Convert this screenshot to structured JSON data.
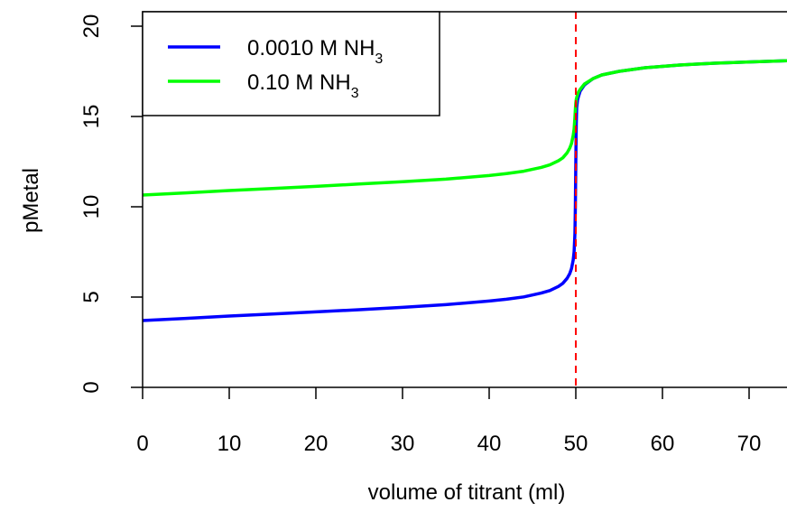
{
  "chart_data": {
    "type": "line",
    "xlabel": "volume of titrant (ml)",
    "ylabel": "pMetal",
    "xlim": [
      0,
      75
    ],
    "ylim": [
      0,
      20
    ],
    "x_ticks": [
      "0",
      "10",
      "20",
      "30",
      "40",
      "50",
      "60",
      "70"
    ],
    "y_ticks": [
      "0",
      "5",
      "10",
      "15",
      "20"
    ],
    "equivalence_point": 50,
    "equivalence_color": "#ff0000",
    "legend_position": "top-left",
    "series": [
      {
        "name": "0.0010 M NH3",
        "legend_main": "0.0010 M NH",
        "legend_sub": "3",
        "color": "#0000ff",
        "x": [
          0,
          5,
          10,
          15,
          20,
          25,
          30,
          35,
          40,
          42,
          44,
          46,
          47,
          48,
          48.5,
          49,
          49.3,
          49.5,
          49.7,
          49.8,
          49.9,
          49.95,
          50,
          50.05,
          50.1,
          50.2,
          50.3,
          50.5,
          51,
          52,
          53,
          55,
          58,
          62,
          66,
          70,
          75
        ],
        "y": [
          3.7,
          3.82,
          3.95,
          4.06,
          4.18,
          4.3,
          4.43,
          4.58,
          4.78,
          4.88,
          5.01,
          5.22,
          5.36,
          5.59,
          5.76,
          6.04,
          6.3,
          6.57,
          7.05,
          7.5,
          8.5,
          10.0,
          12.5,
          14.6,
          15.5,
          15.9,
          16.1,
          16.4,
          16.75,
          17.1,
          17.3,
          17.5,
          17.7,
          17.85,
          17.95,
          18.02,
          18.1
        ]
      },
      {
        "name": "0.10 M NH3",
        "legend_main": "0.10 M NH",
        "legend_sub": "3",
        "color": "#00ff00",
        "x": [
          0,
          5,
          10,
          15,
          20,
          25,
          30,
          35,
          40,
          42,
          44,
          46,
          47,
          48,
          48.5,
          49,
          49.3,
          49.5,
          49.7,
          49.8,
          49.9,
          49.95,
          50,
          50.05,
          50.1,
          50.2,
          50.3,
          50.5,
          51,
          52,
          53,
          55,
          58,
          62,
          66,
          70,
          75
        ],
        "y": [
          10.65,
          10.77,
          10.9,
          11.01,
          11.13,
          11.26,
          11.39,
          11.53,
          11.73,
          11.84,
          11.97,
          12.18,
          12.32,
          12.55,
          12.71,
          12.99,
          13.25,
          13.5,
          13.95,
          14.3,
          14.95,
          15.4,
          15.75,
          15.95,
          16.05,
          16.2,
          16.35,
          16.5,
          16.8,
          17.1,
          17.3,
          17.5,
          17.7,
          17.85,
          17.95,
          18.02,
          18.1
        ]
      }
    ]
  }
}
